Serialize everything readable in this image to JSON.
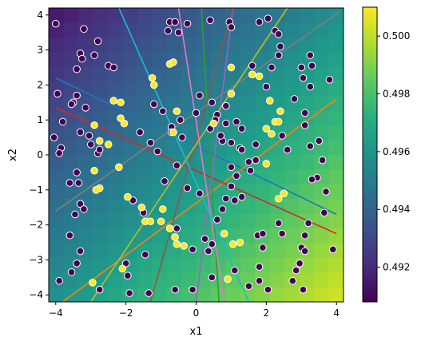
{
  "chart_data": {
    "type": "scatter",
    "xlabel": "x1",
    "ylabel": "x2",
    "xlim": [
      -4.2,
      4.2
    ],
    "ylim": [
      -4.2,
      4.2
    ],
    "xticks": [
      -4,
      -2,
      0,
      2,
      4
    ],
    "yticks": [
      -4,
      -3,
      -2,
      -1,
      0,
      1,
      2,
      3,
      4
    ],
    "grid": false,
    "background": {
      "type": "heatmap",
      "colormap": "viridis",
      "vmin": 0.4908,
      "vmax": 0.501,
      "low_corner": [
        -4.2,
        4.2
      ],
      "high_corner": [
        4.2,
        -4.2
      ],
      "cells": 20
    },
    "colorbar": {
      "ticks": [
        0.492,
        0.494,
        0.496,
        0.498,
        0.5
      ],
      "tick_labels": [
        "0.492",
        "0.494",
        "0.496",
        "0.498",
        "0.500"
      ]
    },
    "lines": [
      {
        "color": "#1f77b4",
        "x": [
          -4.0,
          4.0
        ],
        "y": [
          2.2,
          -1.7
        ]
      },
      {
        "color": "#ff7f0e",
        "x": [
          -3.8,
          4.0
        ],
        "y": [
          -4.2,
          1.6
        ]
      },
      {
        "color": "#2ca02c",
        "x": [
          0.15,
          0.65
        ],
        "y": [
          4.2,
          -4.2
        ]
      },
      {
        "color": "#d62728",
        "x": [
          -4.0,
          4.0
        ],
        "y": [
          1.35,
          -2.25
        ]
      },
      {
        "color": "#9467bd",
        "x": [
          1.05,
          0.0
        ],
        "y": [
          4.2,
          -4.2
        ]
      },
      {
        "color": "#8c564b",
        "x": [
          1.05,
          -1.3
        ],
        "y": [
          4.2,
          -4.2
        ]
      },
      {
        "color": "#e377c2",
        "x": [
          -0.5,
          0.8
        ],
        "y": [
          4.2,
          -4.2
        ]
      },
      {
        "color": "#7f7f7f",
        "x": [
          -4.0,
          4.1
        ],
        "y": [
          -1.6,
          4.1
        ]
      },
      {
        "color": "#bcbd22",
        "x": [
          -3.0,
          2.6
        ],
        "y": [
          -4.2,
          4.2
        ]
      },
      {
        "color": "#17becf",
        "x": [
          -2.2,
          1.5
        ],
        "y": [
          4.2,
          -4.2
        ]
      }
    ],
    "point_colors": {
      "0": "#440154",
      "1": "#fde725"
    },
    "points": [
      [
        -4.0,
        3.75,
        0
      ],
      [
        -3.2,
        3.6,
        0
      ],
      [
        -2.8,
        3.25,
        0
      ],
      [
        -3.3,
        2.9,
        0
      ],
      [
        -3.25,
        2.75,
        0
      ],
      [
        -2.9,
        2.85,
        0
      ],
      [
        -3.4,
        2.45,
        0
      ],
      [
        -2.5,
        2.55,
        0
      ],
      [
        -2.35,
        2.5,
        0
      ],
      [
        -3.95,
        1.75,
        0
      ],
      [
        -3.5,
        1.5,
        0
      ],
      [
        -3.55,
        1.45,
        0
      ],
      [
        -3.4,
        1.7,
        0
      ],
      [
        -3.15,
        1.35,
        0
      ],
      [
        -3.8,
        0.95,
        0
      ],
      [
        -4.05,
        0.5,
        0
      ],
      [
        -3.85,
        0.2,
        0
      ],
      [
        -3.9,
        0.05,
        0
      ],
      [
        -3.3,
        0.65,
        0
      ],
      [
        -3.05,
        0.55,
        0
      ],
      [
        -3.0,
        0.3,
        0
      ],
      [
        -2.8,
        0.05,
        0
      ],
      [
        -2.75,
        0.15,
        0
      ],
      [
        -3.4,
        -0.5,
        0
      ],
      [
        -3.6,
        -0.8,
        0
      ],
      [
        -3.35,
        -0.8,
        0
      ],
      [
        -3.3,
        -1.4,
        0
      ],
      [
        -3.45,
        -1.7,
        0
      ],
      [
        -3.2,
        -1.55,
        0
      ],
      [
        -3.6,
        -2.3,
        0
      ],
      [
        -3.3,
        -2.75,
        0
      ],
      [
        -3.4,
        -3.1,
        0
      ],
      [
        -3.55,
        -3.35,
        0
      ],
      [
        -3.9,
        -3.6,
        0
      ],
      [
        -2.75,
        -3.85,
        0
      ],
      [
        -2.0,
        -3.1,
        0
      ],
      [
        -1.95,
        -3.45,
        0
      ],
      [
        -1.35,
        -3.95,
        0
      ],
      [
        -1.9,
        -3.95,
        0
      ],
      [
        -1.45,
        -2.85,
        0
      ],
      [
        -1.8,
        -1.3,
        0
      ],
      [
        -1.5,
        -1.65,
        0
      ],
      [
        -1.6,
        0.65,
        0
      ],
      [
        -1.3,
        0.35,
        0
      ],
      [
        -1.1,
        0.1,
        0
      ],
      [
        -0.95,
        1.25,
        0
      ],
      [
        -1.2,
        1.45,
        0
      ],
      [
        -0.8,
        3.55,
        0
      ],
      [
        -0.75,
        3.8,
        0
      ],
      [
        -0.6,
        3.8,
        0
      ],
      [
        -0.5,
        3.5,
        0
      ],
      [
        -0.25,
        3.75,
        0
      ],
      [
        0.4,
        3.85,
        0
      ],
      [
        0.95,
        3.8,
        0
      ],
      [
        1.0,
        3.65,
        0
      ],
      [
        1.8,
        3.8,
        0
      ],
      [
        2.05,
        3.9,
        0
      ],
      [
        2.25,
        3.55,
        0
      ],
      [
        2.35,
        3.45,
        0
      ],
      [
        2.4,
        3.1,
        0
      ],
      [
        2.35,
        2.85,
        0
      ],
      [
        2.15,
        2.5,
        0
      ],
      [
        1.6,
        2.55,
        0
      ],
      [
        3.0,
        2.5,
        0
      ],
      [
        3.25,
        2.85,
        0
      ],
      [
        3.3,
        2.55,
        0
      ],
      [
        3.05,
        2.2,
        0
      ],
      [
        3.8,
        2.15,
        0
      ],
      [
        3.25,
        1.95,
        0
      ],
      [
        2.8,
        1.6,
        0
      ],
      [
        3.1,
        1.2,
        0
      ],
      [
        3.1,
        0.85,
        0
      ],
      [
        2.45,
        0.55,
        0
      ],
      [
        2.6,
        0.15,
        0
      ],
      [
        3.25,
        0.25,
        0
      ],
      [
        3.5,
        0.4,
        0
      ],
      [
        3.6,
        -0.15,
        0
      ],
      [
        3.45,
        -0.65,
        0
      ],
      [
        3.3,
        -0.7,
        0
      ],
      [
        3.7,
        -1.05,
        0
      ],
      [
        3.65,
        -1.65,
        0
      ],
      [
        3.2,
        -1.95,
        0
      ],
      [
        3.1,
        -2.3,
        0
      ],
      [
        3.0,
        -2.65,
        0
      ],
      [
        3.1,
        -2.75,
        0
      ],
      [
        2.95,
        -3.1,
        0
      ],
      [
        2.85,
        -3.3,
        0
      ],
      [
        3.9,
        -2.7,
        0
      ],
      [
        2.75,
        -3.6,
        0
      ],
      [
        3.05,
        -3.85,
        0
      ],
      [
        2.05,
        -3.85,
        0
      ],
      [
        1.8,
        -3.2,
        0
      ],
      [
        1.9,
        -2.65,
        0
      ],
      [
        1.75,
        -2.3,
        0
      ],
      [
        1.9,
        -2.25,
        0
      ],
      [
        2.35,
        -1.95,
        0
      ],
      [
        2.45,
        -2.25,
        0
      ],
      [
        1.5,
        -3.75,
        0
      ],
      [
        1.8,
        -3.6,
        0
      ],
      [
        1.1,
        -3.3,
        0
      ],
      [
        0.45,
        -3.5,
        0
      ],
      [
        -0.1,
        -3.85,
        0
      ],
      [
        -0.6,
        -3.85,
        0
      ],
      [
        0.45,
        -2.55,
        0
      ],
      [
        0.25,
        -2.4,
        0
      ],
      [
        0.6,
        -1.85,
        0
      ],
      [
        0.75,
        -1.55,
        0
      ],
      [
        0.85,
        -1.25,
        0
      ],
      [
        1.1,
        -1.3,
        0
      ],
      [
        1.3,
        -1.2,
        0
      ],
      [
        1.0,
        -0.9,
        0
      ],
      [
        1.15,
        -0.6,
        0
      ],
      [
        1.0,
        -0.35,
        0
      ],
      [
        1.5,
        -0.2,
        0
      ],
      [
        1.7,
        -0.15,
        0
      ],
      [
        1.25,
        0.2,
        0
      ],
      [
        1.3,
        0.15,
        0
      ],
      [
        1.0,
        0.35,
        0
      ],
      [
        0.75,
        0.4,
        0
      ],
      [
        0.7,
        0.55,
        0
      ],
      [
        0.85,
        0.9,
        0
      ],
      [
        0.6,
        1.15,
        0
      ],
      [
        0.55,
        1.0,
        0
      ],
      [
        0.85,
        1.4,
        0
      ],
      [
        1.15,
        0.95,
        0
      ],
      [
        1.3,
        0.75,
        0
      ],
      [
        0.45,
        1.5,
        0
      ],
      [
        0.1,
        1.7,
        0
      ],
      [
        0.0,
        1.2,
        0
      ],
      [
        -0.45,
        1.0,
        0
      ],
      [
        -0.7,
        0.8,
        0
      ],
      [
        -0.7,
        0.65,
        0
      ],
      [
        -0.4,
        0.5,
        0
      ],
      [
        -0.55,
        -0.3,
        0
      ],
      [
        -0.9,
        -0.75,
        0
      ],
      [
        -0.25,
        -0.95,
        0
      ],
      [
        0.1,
        -1.1,
        0
      ],
      [
        -0.55,
        -2.1,
        0
      ],
      [
        -0.1,
        -2.7,
        0
      ],
      [
        0.35,
        -2.75,
        0
      ],
      [
        1.55,
        -0.45,
        0
      ],
      [
        1.7,
        0.3,
        0
      ],
      [
        0.4,
        0.75,
        0
      ],
      [
        2.0,
        1.95,
        0
      ],
      [
        1.6,
        2.3,
        0
      ],
      [
        -2.35,
        1.55,
        1
      ],
      [
        -2.15,
        1.5,
        1
      ],
      [
        -2.15,
        1.05,
        1
      ],
      [
        -2.05,
        0.9,
        1
      ],
      [
        -1.25,
        2.2,
        1
      ],
      [
        -1.2,
        2.0,
        1
      ],
      [
        -0.75,
        2.6,
        1
      ],
      [
        -0.65,
        2.65,
        1
      ],
      [
        -0.55,
        1.25,
        1
      ],
      [
        -0.65,
        0.65,
        1
      ],
      [
        -2.9,
        0.85,
        1
      ],
      [
        -2.75,
        0.4,
        1
      ],
      [
        -2.5,
        0.3,
        1
      ],
      [
        -2.2,
        -0.35,
        1
      ],
      [
        -2.9,
        -0.45,
        1
      ],
      [
        -2.75,
        -0.95,
        1
      ],
      [
        -2.85,
        -1.0,
        1
      ],
      [
        -1.95,
        -1.2,
        1
      ],
      [
        -1.55,
        -1.5,
        1
      ],
      [
        -1.45,
        -1.9,
        1
      ],
      [
        -1.3,
        -1.9,
        1
      ],
      [
        -1.0,
        -1.9,
        1
      ],
      [
        -0.75,
        -2.1,
        1
      ],
      [
        -0.6,
        -2.35,
        1
      ],
      [
        -0.55,
        -2.55,
        1
      ],
      [
        -0.35,
        -2.6,
        1
      ],
      [
        -2.1,
        -3.25,
        1
      ],
      [
        -2.95,
        -3.65,
        1
      ],
      [
        -0.95,
        -1.55,
        1
      ],
      [
        0.8,
        -2.25,
        1
      ],
      [
        1.05,
        -2.55,
        1
      ],
      [
        1.25,
        -2.5,
        1
      ],
      [
        0.9,
        -3.55,
        1
      ],
      [
        1.0,
        1.75,
        1
      ],
      [
        1.0,
        2.5,
        1
      ],
      [
        1.6,
        2.3,
        1
      ],
      [
        1.8,
        2.25,
        1
      ],
      [
        2.1,
        1.55,
        1
      ],
      [
        2.4,
        1.25,
        1
      ],
      [
        2.25,
        0.95,
        1
      ],
      [
        2.35,
        0.95,
        1
      ],
      [
        2.15,
        0.6,
        1
      ],
      [
        2.0,
        0.75,
        1
      ],
      [
        0.5,
        0.9,
        1
      ],
      [
        2.0,
        -0.25,
        1
      ],
      [
        2.35,
        -1.25,
        1
      ],
      [
        2.5,
        -1.1,
        1
      ]
    ]
  }
}
